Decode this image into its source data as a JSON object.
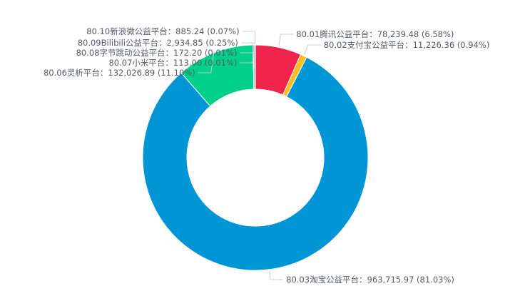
{
  "chart_data": {
    "type": "pie",
    "variant": "donut",
    "title": "",
    "legend": "none",
    "colors": [
      "#f0244c",
      "#fbbf24",
      "#0096d6",
      "#0fa3b1",
      "#8b5cf6",
      "#f97316",
      "#00d08a",
      "#9ca3af",
      "#a855f7"
    ],
    "slices": [
      {
        "name": "80.01腾讯公益平台",
        "value": 78239.48,
        "value_text": "78,239.48",
        "percent_text": "6.58%",
        "color": "#f0244c",
        "label_text": "80.01腾讯公益平台：78,239.48 (6.58%)"
      },
      {
        "name": "80.02支付宝公益平台",
        "value": 11226.36,
        "value_text": "11,226.36",
        "percent_text": "0.94%",
        "color": "#fbbf24",
        "label_text": "80.02支付宝公益平台：11,226.36 (0.94%)"
      },
      {
        "name": "80.03淘宝公益平台",
        "value": 963715.97,
        "value_text": "963,715.97",
        "percent_text": "81.03%",
        "color": "#0096d6",
        "label_text": "80.03淘宝公益平台：963,715.97 (81.03%)"
      },
      {
        "name": "80.06灵析平台",
        "value": 132026.89,
        "value_text": "132,026.89",
        "percent_text": "11.10%",
        "color": "#00d08a",
        "label_text": "80.06灵析平台：132,026.89 (11.10%)"
      },
      {
        "name": "80.07小米平台",
        "value": 113.0,
        "value_text": "113.00",
        "percent_text": "0.01%",
        "color": "#f97316",
        "label_text": "80.07小米平台：113.00 (0.01%)"
      },
      {
        "name": "80.08字节跳动公益平台",
        "value": 172.2,
        "value_text": "172.20",
        "percent_text": "0.01%",
        "color": "#8b5cf6",
        "label_text": "80.08字节跳动公益平台：172.20 (0.01%)"
      },
      {
        "name": "80.09Bilibili公益平台",
        "value": 2934.85,
        "value_text": "2,934.85",
        "percent_text": "0.25%",
        "color": "#9ca3af",
        "label_text": "80.09Bilibili公益平台：2,934.85 (0.25%)"
      },
      {
        "name": "80.10新浪微公益平台",
        "value": 885.24,
        "value_text": "885.24",
        "percent_text": "0.07%",
        "color": "#e06b3a",
        "label_text": "80.10新浪微公益平台：885.24 (0.07%)"
      }
    ]
  }
}
